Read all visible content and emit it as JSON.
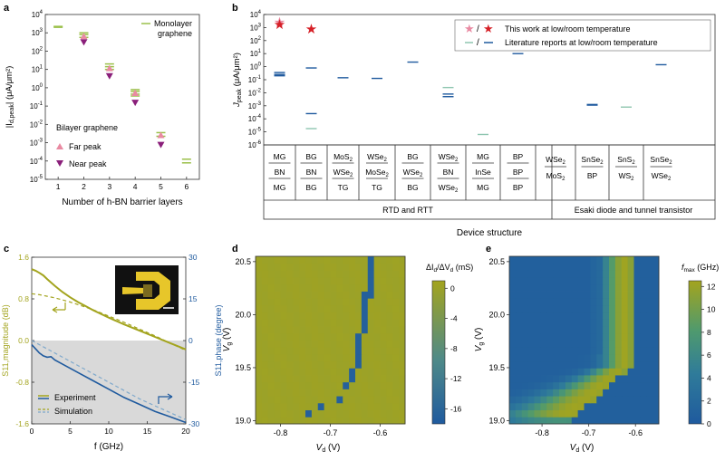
{
  "panels": [
    "a",
    "b",
    "c",
    "d",
    "e"
  ],
  "colors": {
    "olive": "#a3a41e",
    "olive_dark": "#8b8a10",
    "blue": "#1f5a9e",
    "blue_light": "#7fa9cc",
    "pink": "#e98aa2",
    "purple": "#8a1f7a",
    "red": "#d61f26",
    "green_line": "#9bc04a",
    "teal_line": "#8fc6b0"
  },
  "chart_data": [
    {
      "id": "a",
      "type": "scatter",
      "xlabel": "Number of h-BN barrier layers",
      "ylabel_main": "|I",
      "ylabel_sub": "d,peak",
      "ylabel_unit": "| (μA/μm²)",
      "xticks": [
        "1",
        "2",
        "3",
        "4",
        "5",
        "6"
      ],
      "yticks": [
        {
          "base": "10",
          "exp": "4",
          "v": 4
        },
        {
          "base": "10",
          "exp": "3",
          "v": 3
        },
        {
          "base": "10",
          "exp": "2",
          "v": 2
        },
        {
          "base": "10",
          "exp": "1",
          "v": 1
        },
        {
          "base": "10",
          "exp": "0",
          "v": 0
        },
        {
          "base": "10",
          "exp": "-1",
          "v": -1
        },
        {
          "base": "10",
          "exp": "-2",
          "v": -2
        },
        {
          "base": "10",
          "exp": "-3",
          "v": -3
        },
        {
          "base": "10",
          "exp": "-4",
          "v": -4
        },
        {
          "base": "10",
          "exp": "-5",
          "v": -5
        }
      ],
      "ylim_log10": [
        -5,
        4
      ],
      "xlim": [
        0.5,
        6.5
      ],
      "legend_monolayer": [
        "Monolayer",
        "graphene"
      ],
      "legend_bilayer_title": "Bilayer graphene",
      "legend_far": "Far peak",
      "legend_near": "Near peak",
      "monolayer_points": [
        [
          1,
          3.35
        ],
        [
          1,
          3.3
        ],
        [
          2,
          3.0
        ],
        [
          2,
          2.9
        ],
        [
          2,
          2.75
        ],
        [
          3,
          1.3
        ],
        [
          3,
          1.15
        ],
        [
          3,
          1.0
        ],
        [
          4,
          -0.1
        ],
        [
          4,
          -0.2
        ],
        [
          4,
          -0.35
        ],
        [
          4,
          -0.45
        ],
        [
          5,
          -2.45
        ],
        [
          5,
          -2.65
        ],
        [
          6,
          -3.9
        ],
        [
          6,
          -4.1
        ]
      ],
      "far_peak": [
        [
          2,
          2.8
        ],
        [
          3,
          1.05
        ],
        [
          4,
          -0.3
        ],
        [
          5,
          -2.6
        ]
      ],
      "near_peak": [
        [
          2,
          2.5
        ],
        [
          3,
          0.65
        ],
        [
          4,
          -0.8
        ],
        [
          5,
          -3.1
        ]
      ]
    },
    {
      "id": "b",
      "type": "scatter",
      "xlabel": "Device structure",
      "ylabel_main": "J",
      "ylabel_sub": "peak",
      "ylabel_unit": " (μA/μm²)",
      "ylim_log10": [
        -6,
        4
      ],
      "yticks": [
        {
          "base": "10",
          "exp": "4",
          "v": 4
        },
        {
          "base": "10",
          "exp": "3",
          "v": 3
        },
        {
          "base": "10",
          "exp": "2",
          "v": 2
        },
        {
          "base": "10",
          "exp": "1",
          "v": 1
        },
        {
          "base": "10",
          "exp": "0",
          "v": 0
        },
        {
          "base": "10",
          "exp": "-1",
          "v": -1
        },
        {
          "base": "10",
          "exp": "-2",
          "v": -2
        },
        {
          "base": "10",
          "exp": "-3",
          "v": -3
        },
        {
          "base": "10",
          "exp": "-4",
          "v": -4
        },
        {
          "base": "10",
          "exp": "-5",
          "v": -5
        },
        {
          "base": "10",
          "exp": "-6",
          "v": -6
        }
      ],
      "legend_this_work_sep": "/",
      "legend_this_work": "This work at low/room temperature",
      "legend_lit_sep": "/",
      "legend_lit": "Literature reports at low/room temperature",
      "group_rtd": "RTD and RTT",
      "group_esaki": "Esaki diode and tunnel transistor",
      "columns": [
        {
          "rows": [
            [
              "MG"
            ],
            [
              "BN"
            ],
            [
              "MG"
            ]
          ]
        },
        {
          "rows": [
            [
              "BG"
            ],
            [
              "BN"
            ],
            [
              "BG"
            ]
          ]
        },
        {
          "rows": [
            [
              "MoS",
              "2"
            ],
            [
              "WSe",
              "2"
            ],
            [
              "TG"
            ]
          ]
        },
        {
          "rows": [
            [
              "WSe",
              "2"
            ],
            [
              "MoSe",
              "2"
            ],
            [
              "TG"
            ]
          ]
        },
        {
          "rows": [
            [
              "BG"
            ],
            [
              "WSe",
              "2"
            ],
            [
              "BG"
            ]
          ]
        },
        {
          "rows": [
            [
              "WSe",
              "2"
            ],
            [
              "BN"
            ],
            [
              "WSe",
              "2"
            ]
          ]
        },
        {
          "rows": [
            [
              "MG"
            ],
            [
              "InSe"
            ],
            [
              "MG"
            ]
          ]
        },
        {
          "rows": [
            [
              "BP"
            ],
            [
              "BP"
            ],
            [
              "BP"
            ]
          ]
        },
        {
          "rows": [
            [
              "WSe",
              "2"
            ],
            [
              "MoS",
              "2"
            ]
          ]
        },
        {
          "rows": [
            [
              "SnSe",
              "2"
            ],
            [
              "BP"
            ]
          ]
        },
        {
          "rows": [
            [
              "SnS",
              "2"
            ],
            [
              "WS",
              "2"
            ]
          ]
        },
        {
          "rows": [
            [
              "SnSe",
              "2"
            ],
            [
              "WSe",
              "2"
            ]
          ]
        }
      ],
      "this_work_low": [
        {
          "col": 0,
          "v": 3.4
        }
      ],
      "this_work_room": [
        {
          "col": 0,
          "v": 3.25
        },
        {
          "col": 1,
          "v": 2.9
        }
      ],
      "lit_low": [
        {
          "col": 1,
          "v": -4.75
        },
        {
          "col": 5,
          "v": -1.6
        },
        {
          "col": 6,
          "v": -5.2
        },
        {
          "col": 10,
          "v": -3.1
        }
      ],
      "lit_room": [
        {
          "col": 0,
          "v": -0.45
        },
        {
          "col": 0,
          "v": -0.6
        },
        {
          "col": 0,
          "v": -0.7
        },
        {
          "col": 1,
          "v": -0.1
        },
        {
          "col": 1,
          "v": -3.6
        },
        {
          "col": 2,
          "v": -0.85
        },
        {
          "col": 3,
          "v": -0.9
        },
        {
          "col": 4,
          "v": 0.35
        },
        {
          "col": 5,
          "v": -2.1
        },
        {
          "col": 5,
          "v": -2.3
        },
        {
          "col": 7,
          "v": 1.0
        },
        {
          "col": 9,
          "v": -2.9
        },
        {
          "col": 9,
          "v": -2.95
        },
        {
          "col": 11,
          "v": 0.15
        }
      ]
    },
    {
      "id": "c",
      "type": "line",
      "xlabel": "f (GHz)",
      "ylabel_left": "S11,magnitude (dB)",
      "ylabel_right": "S11,phase (degree)",
      "xticks": [
        "0",
        "5",
        "10",
        "15",
        "20"
      ],
      "yticks_left": [
        "1.6",
        "0.8",
        "0.0",
        "-0.8",
        "-1.6"
      ],
      "yticks_right": [
        "30",
        "15",
        "0",
        "-15",
        "-30"
      ],
      "xlim": [
        0,
        20
      ],
      "ylim_left": [
        -1.6,
        1.6
      ],
      "ylim_right": [
        -30,
        30
      ],
      "legend": [
        "Experiment",
        "Simulation"
      ],
      "series": [
        {
          "name": "Experiment magnitude",
          "axis": "left",
          "x": [
            0,
            0.5,
            1,
            1.5,
            2,
            3,
            4,
            5,
            6,
            7,
            8,
            10,
            12,
            14,
            16,
            18,
            20
          ],
          "y": [
            1.37,
            1.34,
            1.3,
            1.25,
            1.18,
            1.05,
            0.93,
            0.83,
            0.74,
            0.66,
            0.58,
            0.44,
            0.31,
            0.19,
            0.07,
            -0.05,
            -0.17
          ]
        },
        {
          "name": "Simulation magnitude",
          "axis": "left",
          "x": [
            0,
            1,
            2,
            3,
            4,
            5,
            6,
            8,
            10,
            12,
            14,
            16,
            18,
            20
          ],
          "y": [
            0.9,
            0.88,
            0.85,
            0.82,
            0.78,
            0.74,
            0.69,
            0.59,
            0.47,
            0.35,
            0.22,
            0.09,
            -0.05,
            -0.19
          ]
        },
        {
          "name": "Experiment phase",
          "axis": "right",
          "x": [
            0,
            0.5,
            1,
            1.5,
            2,
            2.5,
            3,
            4,
            5,
            6,
            8,
            10,
            12,
            14,
            16,
            18,
            20
          ],
          "y": [
            -1.5,
            -3,
            -4.5,
            -5.5,
            -6,
            -5.8,
            -7,
            -8.5,
            -10,
            -11.5,
            -14.5,
            -17.5,
            -20.5,
            -23,
            -25.5,
            -27.5,
            -29.5
          ]
        },
        {
          "name": "Simulation phase",
          "axis": "right",
          "x": [
            0,
            2,
            4,
            6,
            8,
            10,
            12,
            14,
            16,
            18,
            20
          ],
          "y": [
            0,
            -3,
            -6,
            -9,
            -12,
            -15,
            -18,
            -21,
            -23.5,
            -26,
            -28.5
          ]
        }
      ]
    },
    {
      "id": "d",
      "type": "heatmap",
      "xlabel": "V",
      "xlabel_sub": "d",
      "xlabel_unit": " (V)",
      "ylabel": "V",
      "ylabel_sub": "g",
      "ylabel_unit": " (V)",
      "xticks": [
        {
          "label": "-0.8",
          "v": -0.8
        },
        {
          "label": "-0.7",
          "v": -0.7
        },
        {
          "label": "-0.6",
          "v": -0.6
        }
      ],
      "yticks": [
        {
          "label": "20.5",
          "v": 20.5
        },
        {
          "label": "20.0",
          "v": 20.0
        },
        {
          "label": "19.5",
          "v": 19.5
        },
        {
          "label": "19.0",
          "v": 19.0
        }
      ],
      "xlim": [
        -0.85,
        -0.55
      ],
      "ylim": [
        18.97,
        20.55
      ],
      "colorbar_label": "ΔI",
      "colorbar_label_sub": "d",
      "colorbar_label_mid": "/ΔV",
      "colorbar_label_sub2": "d",
      "colorbar_unit": " (mS)",
      "colorbar_ticks": [
        "0",
        "-4",
        "-8",
        "-12",
        "-16"
      ],
      "crange": [
        -18,
        1
      ],
      "grid": {
        "nx": 24,
        "ny": 24
      },
      "cells": [
        {
          "ix": 18,
          "iy": 18,
          "v": -17
        },
        {
          "ix": 18,
          "iy": 19,
          "v": -17
        },
        {
          "ix": 18,
          "iy": 20,
          "v": -17
        },
        {
          "ix": 18,
          "iy": 21,
          "v": -17
        },
        {
          "ix": 18,
          "iy": 22,
          "v": -17
        },
        {
          "ix": 18,
          "iy": 23,
          "v": -17
        },
        {
          "ix": 17,
          "iy": 13,
          "v": -17
        },
        {
          "ix": 17,
          "iy": 14,
          "v": -17
        },
        {
          "ix": 17,
          "iy": 15,
          "v": -17
        },
        {
          "ix": 17,
          "iy": 16,
          "v": -17
        },
        {
          "ix": 17,
          "iy": 17,
          "v": -17
        },
        {
          "ix": 17,
          "iy": 18,
          "v": -17
        },
        {
          "ix": 16,
          "iy": 8,
          "v": -17
        },
        {
          "ix": 16,
          "iy": 9,
          "v": -17
        },
        {
          "ix": 16,
          "iy": 10,
          "v": -17
        },
        {
          "ix": 16,
          "iy": 11,
          "v": -17
        },
        {
          "ix": 16,
          "iy": 12,
          "v": -17
        },
        {
          "ix": 15,
          "iy": 6,
          "v": -17
        },
        {
          "ix": 15,
          "iy": 7,
          "v": -17
        },
        {
          "ix": 14,
          "iy": 5,
          "v": -17
        },
        {
          "ix": 13,
          "iy": 3,
          "v": -17
        },
        {
          "ix": 10,
          "iy": 2,
          "v": -17
        },
        {
          "ix": 8,
          "iy": 1,
          "v": -17
        }
      ]
    },
    {
      "id": "e",
      "type": "heatmap",
      "xlabel": "V",
      "xlabel_sub": "d",
      "xlabel_unit": " (V)",
      "ylabel": "V",
      "ylabel_sub": "g",
      "ylabel_unit": " (V)",
      "xticks": [
        {
          "label": "-0.8",
          "v": -0.8
        },
        {
          "label": "-0.7",
          "v": -0.7
        },
        {
          "label": "-0.6",
          "v": -0.6
        }
      ],
      "yticks": [
        {
          "label": "20.5",
          "v": 20.5
        },
        {
          "label": "20.0",
          "v": 20.0
        },
        {
          "label": "19.5",
          "v": 19.5
        },
        {
          "label": "19.0",
          "v": 19.0
        }
      ],
      "xlim": [
        -0.87,
        -0.55
      ],
      "ylim": [
        18.97,
        20.55
      ],
      "colorbar_label": "f",
      "colorbar_label_sub": "max",
      "colorbar_unit": " (GHz)",
      "colorbar_ticks": [
        "12",
        "10",
        "8",
        "6",
        "4",
        "2",
        "0"
      ],
      "crange": [
        0,
        12.5
      ],
      "grid": {
        "nx": 24,
        "ny": 24
      },
      "ridge": {
        "peak_ix": 18,
        "peak_value": 11.5
      }
    }
  ]
}
